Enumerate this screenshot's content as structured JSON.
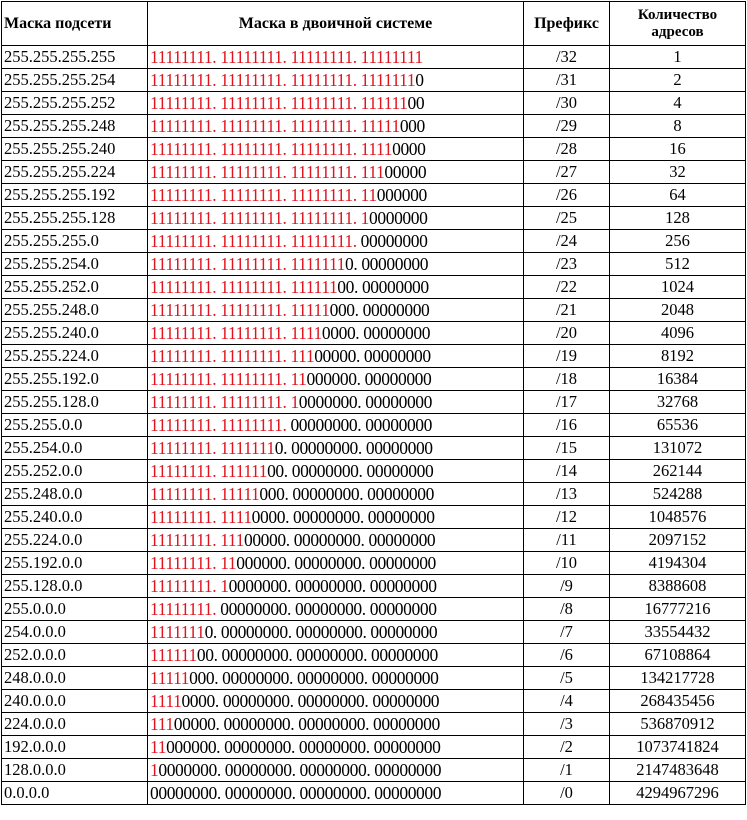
{
  "headers": {
    "mask": "Маска подсети",
    "binary": "Маска в двоичной системе",
    "prefix": "Префикс",
    "count_line1": "Количество",
    "count_line2": "адресов"
  },
  "colors": {
    "ones": "#e0141e",
    "zeros": "#000000",
    "border": "#000000"
  },
  "rows": [
    {
      "mask": "255.255.255.255",
      "prefix": "/32",
      "count": "1"
    },
    {
      "mask": "255.255.255.254",
      "prefix": "/31",
      "count": "2"
    },
    {
      "mask": "255.255.255.252",
      "prefix": "/30",
      "count": "4"
    },
    {
      "mask": "255.255.255.248",
      "prefix": "/29",
      "count": "8"
    },
    {
      "mask": "255.255.255.240",
      "prefix": "/28",
      "count": "16"
    },
    {
      "mask": "255.255.255.224",
      "prefix": "/27",
      "count": "32"
    },
    {
      "mask": "255.255.255.192",
      "prefix": "/26",
      "count": "64"
    },
    {
      "mask": "255.255.255.128",
      "prefix": "/25",
      "count": "128"
    },
    {
      "mask": "255.255.255.0",
      "prefix": "/24",
      "count": "256"
    },
    {
      "mask": "255.255.254.0",
      "prefix": "/23",
      "count": "512"
    },
    {
      "mask": "255.255.252.0",
      "prefix": "/22",
      "count": "1024"
    },
    {
      "mask": "255.255.248.0",
      "prefix": "/21",
      "count": "2048"
    },
    {
      "mask": "255.255.240.0",
      "prefix": "/20",
      "count": "4096"
    },
    {
      "mask": "255.255.224.0",
      "prefix": "/19",
      "count": "8192"
    },
    {
      "mask": "255.255.192.0",
      "prefix": "/18",
      "count": "16384"
    },
    {
      "mask": "255.255.128.0",
      "prefix": "/17",
      "count": "32768"
    },
    {
      "mask": "255.255.0.0",
      "prefix": "/16",
      "count": "65536"
    },
    {
      "mask": "255.254.0.0",
      "prefix": "/15",
      "count": "131072"
    },
    {
      "mask": "255.252.0.0",
      "prefix": "/14",
      "count": "262144"
    },
    {
      "mask": "255.248.0.0",
      "prefix": "/13",
      "count": "524288"
    },
    {
      "mask": "255.240.0.0",
      "prefix": "/12",
      "count": "1048576"
    },
    {
      "mask": "255.224.0.0",
      "prefix": "/11",
      "count": "2097152"
    },
    {
      "mask": "255.192.0.0",
      "prefix": "/10",
      "count": "4194304"
    },
    {
      "mask": "255.128.0.0",
      "prefix": "/9",
      "count": "8388608"
    },
    {
      "mask": "255.0.0.0",
      "prefix": "/8",
      "count": "16777216"
    },
    {
      "mask": "254.0.0.0",
      "prefix": "/7",
      "count": "33554432"
    },
    {
      "mask": "252.0.0.0",
      "prefix": "/6",
      "count": "67108864"
    },
    {
      "mask": "248.0.0.0",
      "prefix": "/5",
      "count": "134217728"
    },
    {
      "mask": "240.0.0.0",
      "prefix": "/4",
      "count": "268435456"
    },
    {
      "mask": "224.0.0.0",
      "prefix": "/3",
      "count": "536870912"
    },
    {
      "mask": "192.0.0.0",
      "prefix": "/2",
      "count": "1073741824"
    },
    {
      "mask": "128.0.0.0",
      "prefix": "/1",
      "count": "2147483648"
    },
    {
      "mask": "0.0.0.0",
      "prefix": "/0",
      "count": "4294967296"
    }
  ]
}
